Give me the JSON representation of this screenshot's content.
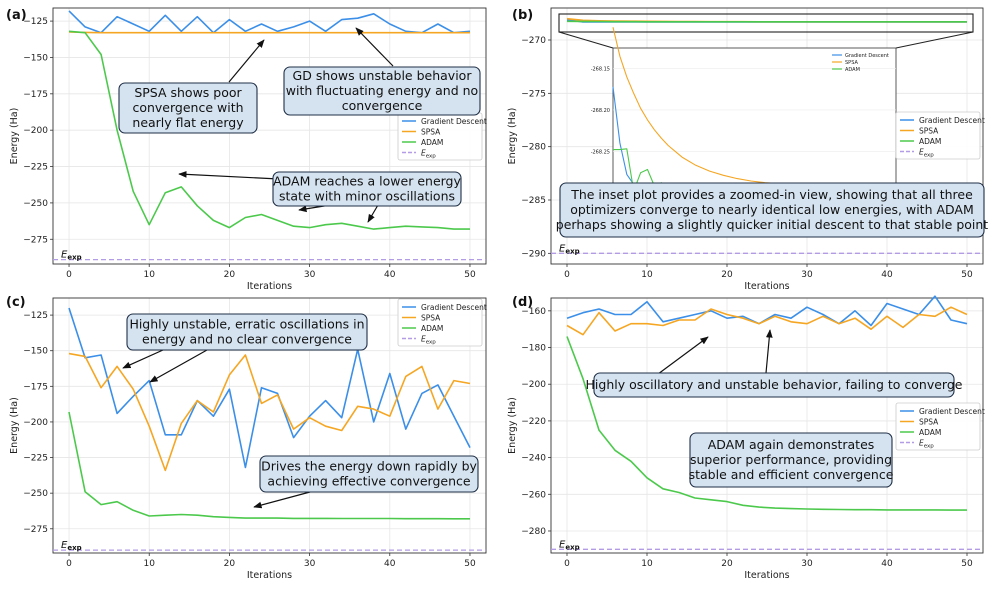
{
  "chart_data": [
    {
      "id": "a",
      "panel_label": "(a)",
      "type": "line",
      "xlabel": "Iterations",
      "ylabel": "Energy (Ha)",
      "xlim": [
        -2,
        52
      ],
      "ylim": [
        -292,
        -116
      ],
      "xticks": [
        0,
        10,
        20,
        30,
        40,
        50
      ],
      "yticks": [
        -275,
        -250,
        -225,
        -200,
        -175,
        -150,
        -125
      ],
      "x": [
        0,
        2,
        4,
        6,
        8,
        10,
        12,
        14,
        16,
        18,
        20,
        22,
        24,
        26,
        28,
        30,
        32,
        34,
        36,
        38,
        40,
        42,
        44,
        46,
        48,
        50
      ],
      "series": [
        {
          "name": "Gradient Descent",
          "color": "#3b8fe8",
          "values": [
            -118,
            -129,
            -133,
            -122,
            -127,
            -132,
            -121,
            -132,
            -122,
            -133,
            -124,
            -132,
            -127,
            -132,
            -129,
            -125,
            -132,
            -124,
            -123,
            -120,
            -127,
            -132,
            -133,
            -127,
            -133,
            -132
          ]
        },
        {
          "name": "SPSA",
          "color": "#f5a623",
          "values": [
            -132.5,
            -132.8,
            -133,
            -133,
            -133,
            -133,
            -133,
            -133,
            -133,
            -133,
            -133,
            -133,
            -133,
            -133,
            -133,
            -133,
            -133,
            -133,
            -133,
            -133,
            -133,
            -133,
            -133,
            -133,
            -133,
            -133
          ]
        },
        {
          "name": "ADAM",
          "color": "#4cc94c",
          "values": [
            -132,
            -133,
            -148,
            -200,
            -242,
            -265,
            -243,
            -239,
            -252,
            -262,
            -267,
            -260,
            -258,
            -262,
            -266,
            -267,
            -265,
            -264,
            -266,
            -268,
            -267,
            -266,
            -266.5,
            -267,
            -268,
            -268
          ]
        }
      ],
      "eexp": -289,
      "eexp_label": "E",
      "eexp_sub": "exp",
      "eexp_legend_color": "#b29ce6",
      "legend": {
        "entries": [
          "Gradient Descent",
          "SPSA",
          "ADAM",
          "E",
          "exp"
        ],
        "placement": "center-right"
      },
      "annotations": [
        {
          "lines": [
            "SPSA shows poor",
            "convergence with",
            "nearly flat energy"
          ]
        },
        {
          "lines": [
            "GD shows unstable behavior",
            "with fluctuating energy and no",
            "convergence"
          ]
        },
        {
          "lines": [
            "ADAM reaches a lower energy",
            "state with minor oscillations"
          ]
        }
      ]
    },
    {
      "id": "b",
      "panel_label": "(b)",
      "type": "line",
      "xlabel": "Iterations",
      "ylabel": "Energy (Ha)",
      "xlim": [
        -2,
        52
      ],
      "ylim": [
        -291,
        -267
      ],
      "xticks": [
        0,
        10,
        20,
        30,
        40,
        50
      ],
      "yticks": [
        -290,
        -285,
        -280,
        -275,
        -270
      ],
      "x": [
        0,
        2,
        4,
        6,
        8,
        10,
        12,
        14,
        16,
        18,
        20,
        22,
        24,
        26,
        28,
        30,
        32,
        34,
        36,
        38,
        40,
        42,
        44,
        46,
        48,
        50
      ],
      "series": [
        {
          "name": "Gradient Descent",
          "color": "#3b8fe8",
          "values": [
            -268.1,
            -268.3,
            -268.3,
            -268.3,
            -268.3,
            -268.3,
            -268.3,
            -268.3,
            -268.3,
            -268.3,
            -268.3,
            -268.3,
            -268.3,
            -268.3,
            -268.3,
            -268.3,
            -268.3,
            -268.3,
            -268.3,
            -268.3,
            -268.3,
            -268.3,
            -268.3,
            -268.3,
            -268.3,
            -268.3
          ]
        },
        {
          "name": "SPSA",
          "color": "#f5a623",
          "values": [
            -268.0,
            -268.15,
            -268.2,
            -268.22,
            -268.24,
            -268.25,
            -268.26,
            -268.27,
            -268.27,
            -268.28,
            -268.28,
            -268.28,
            -268.29,
            -268.29,
            -268.29,
            -268.29,
            -268.29,
            -268.29,
            -268.29,
            -268.29,
            -268.29,
            -268.29,
            -268.29,
            -268.29,
            -268.29,
            -268.29
          ]
        },
        {
          "name": "ADAM",
          "color": "#4cc94c",
          "values": [
            -268.25,
            -268.26,
            -268.27,
            -268.28,
            -268.28,
            -268.29,
            -268.29,
            -268.29,
            -268.29,
            -268.29,
            -268.29,
            -268.29,
            -268.29,
            -268.29,
            -268.29,
            -268.29,
            -268.29,
            -268.29,
            -268.29,
            -268.29,
            -268.29,
            -268.29,
            -268.29,
            -268.29,
            -268.29,
            -268.29
          ]
        }
      ],
      "eexp": -290,
      "eexp_label": "E",
      "eexp_sub": "exp",
      "legend": {
        "entries": [
          "Gradient Descent",
          "SPSA",
          "ADAM",
          "E",
          "exp"
        ],
        "placement": "center-right"
      },
      "inset": {
        "xlim": [
          0,
          41
        ],
        "ylim": [
          -268.315,
          -268.125
        ],
        "yticks": [
          -268.15,
          -268.2,
          -268.25,
          -268.3
        ],
        "ytick_labels": [
          "-268.15",
          "-268.20",
          "-268.25",
          "-268.30"
        ],
        "x": [
          0,
          1,
          2,
          3,
          4,
          5,
          6,
          7,
          8,
          9,
          10,
          12,
          14,
          16,
          18,
          20,
          22,
          24,
          26,
          28,
          30,
          32,
          34,
          36,
          38,
          40
        ],
        "series": [
          {
            "name": "Gradient Descent",
            "color": "#3b8fe8",
            "values": [
              -268.172,
              -268.24,
              -268.278,
              -268.29,
              -268.294,
              -268.296,
              -268.297,
              -268.297,
              -268.297,
              -268.297,
              -268.297,
              -268.297,
              -268.297,
              -268.297,
              -268.297,
              -268.297,
              -268.297,
              -268.297,
              -268.297,
              -268.297,
              -268.297,
              -268.297,
              -268.297,
              -268.297,
              -268.297,
              -268.297
            ]
          },
          {
            "name": "SPSA",
            "color": "#f5a623",
            "values": [
              -268.1,
              -268.135,
              -268.16,
              -268.18,
              -268.198,
              -268.212,
              -268.224,
              -268.234,
              -268.243,
              -268.25,
              -268.257,
              -268.267,
              -268.274,
              -268.279,
              -268.283,
              -268.286,
              -268.288,
              -268.289,
              -268.29,
              -268.291,
              -268.291,
              -268.292,
              -268.292,
              -268.292,
              -268.293,
              -268.293
            ]
          },
          {
            "name": "ADAM",
            "color": "#4cc94c",
            "values": [
              -268.248,
              -268.248,
              -268.247,
              -268.298,
              -268.276,
              -268.272,
              -268.292,
              -268.288,
              -268.292,
              -268.296,
              -268.294,
              -268.296,
              -268.297,
              -268.297,
              -268.297,
              -268.297,
              -268.297,
              -268.297,
              -268.297,
              -268.297,
              -268.297,
              -268.297,
              -268.297,
              -268.297,
              -268.297,
              -268.297
            ]
          }
        ],
        "legend": [
          "Gradient Descent",
          "SPSA",
          "ADAM"
        ]
      },
      "annotations": [
        {
          "lines": [
            "The inset plot provides a zoomed-in view, showing that all three",
            "optimizers converge to nearly identical low energies, with ADAM",
            "perhaps showing a slightly quicker initial descent to that stable point"
          ]
        }
      ]
    },
    {
      "id": "c",
      "panel_label": "(c)",
      "type": "line",
      "xlabel": "Iterations",
      "ylabel": "Energy (Ha)",
      "xlim": [
        -2,
        52
      ],
      "ylim": [
        -292,
        -113
      ],
      "xticks": [
        0,
        10,
        20,
        30,
        40,
        50
      ],
      "yticks": [
        -275,
        -250,
        -225,
        -200,
        -175,
        -150,
        -125
      ],
      "x": [
        0,
        2,
        4,
        6,
        8,
        10,
        12,
        14,
        16,
        18,
        20,
        22,
        24,
        26,
        28,
        30,
        32,
        34,
        36,
        38,
        40,
        42,
        44,
        46,
        48,
        50
      ],
      "series": [
        {
          "name": "Gradient Descent",
          "color": "#3b8fe8",
          "values": [
            -120,
            -155,
            -153,
            -194,
            -182,
            -171,
            -209,
            -209,
            -185,
            -196,
            -177,
            -232,
            -176,
            -180,
            -211,
            -196,
            -185,
            -197,
            -149,
            -200,
            -166,
            -205,
            -180,
            -174,
            -196,
            -218
          ]
        },
        {
          "name": "SPSA",
          "color": "#f5a623",
          "values": [
            -152,
            -154,
            -176,
            -161,
            -177,
            -203,
            -234,
            -201,
            -185,
            -193,
            -167,
            -153,
            -187,
            -181,
            -205,
            -197,
            -203,
            -206,
            -189,
            -191,
            -196,
            -168,
            -161,
            -191,
            -171,
            -173
          ]
        },
        {
          "name": "ADAM",
          "color": "#4cc94c",
          "values": [
            -193,
            -249,
            -258,
            -256,
            -262,
            -266,
            -265.5,
            -265,
            -265.5,
            -266.5,
            -267,
            -267.5,
            -267.5,
            -267.5,
            -267.7,
            -267.7,
            -267.7,
            -267.8,
            -267.8,
            -267.8,
            -267.8,
            -267.9,
            -267.9,
            -267.9,
            -268,
            -268
          ]
        }
      ],
      "eexp": -290,
      "eexp_label": "E",
      "eexp_sub": "exp",
      "legend": {
        "entries": [
          "Gradient Descent",
          "SPSA",
          "ADAM",
          "E",
          "exp"
        ],
        "placement": "top-right"
      },
      "annotations": [
        {
          "lines": [
            "Highly unstable, erratic oscillations in",
            "energy and no clear convergence"
          ]
        },
        {
          "lines": [
            "Drives the energy down rapidly by",
            "achieving effective convergence"
          ]
        }
      ]
    },
    {
      "id": "d",
      "panel_label": "(d)",
      "type": "line",
      "xlabel": "Iterations",
      "ylabel": "Energy (Ha)",
      "xlim": [
        -2,
        52
      ],
      "ylim": [
        -292,
        -153
      ],
      "xticks": [
        0,
        10,
        20,
        30,
        40,
        50
      ],
      "yticks": [
        -280,
        -260,
        -240,
        -220,
        -200,
        -180,
        -160
      ],
      "x": [
        0,
        2,
        4,
        6,
        8,
        10,
        12,
        14,
        16,
        18,
        20,
        22,
        24,
        26,
        28,
        30,
        32,
        34,
        36,
        38,
        40,
        42,
        44,
        46,
        48,
        50
      ],
      "series": [
        {
          "name": "Gradient Descent",
          "color": "#3b8fe8",
          "values": [
            -164,
            -161,
            -159,
            -162,
            -162,
            -155,
            -166,
            -164,
            -162,
            -160,
            -164,
            -163,
            -167,
            -162,
            -164,
            -158,
            -162,
            -167,
            -160,
            -168,
            -156,
            -159,
            -162,
            -152,
            -165,
            -167
          ]
        },
        {
          "name": "SPSA",
          "color": "#f5a623",
          "values": [
            -168,
            -173,
            -161,
            -171,
            -167,
            -167,
            -168,
            -165,
            -165,
            -159,
            -162,
            -164,
            -167,
            -163,
            -166,
            -167,
            -163,
            -167,
            -164,
            -170,
            -163,
            -169,
            -162,
            -163,
            -158,
            -162
          ]
        },
        {
          "name": "ADAM",
          "color": "#4cc94c",
          "values": [
            -174,
            -197,
            -225,
            -236,
            -242,
            -251,
            -257,
            -259,
            -262,
            -263,
            -264,
            -266,
            -267,
            -267.5,
            -267.8,
            -268,
            -268.2,
            -268.3,
            -268.4,
            -268.4,
            -268.5,
            -268.5,
            -268.5,
            -268.5,
            -268.6,
            -268.6
          ]
        }
      ],
      "eexp": -290,
      "eexp_label": "E",
      "eexp_sub": "exp",
      "legend": {
        "entries": [
          "Gradient Descent",
          "SPSA",
          "ADAM",
          "E",
          "exp"
        ],
        "placement": "center-right"
      },
      "annotations": [
        {
          "lines": [
            "Highly oscillatory and unstable behavior, failing to converge"
          ]
        },
        {
          "lines": [
            "ADAM again demonstrates",
            "superior performance, providing",
            "stable and efficient convergence"
          ]
        }
      ]
    }
  ]
}
